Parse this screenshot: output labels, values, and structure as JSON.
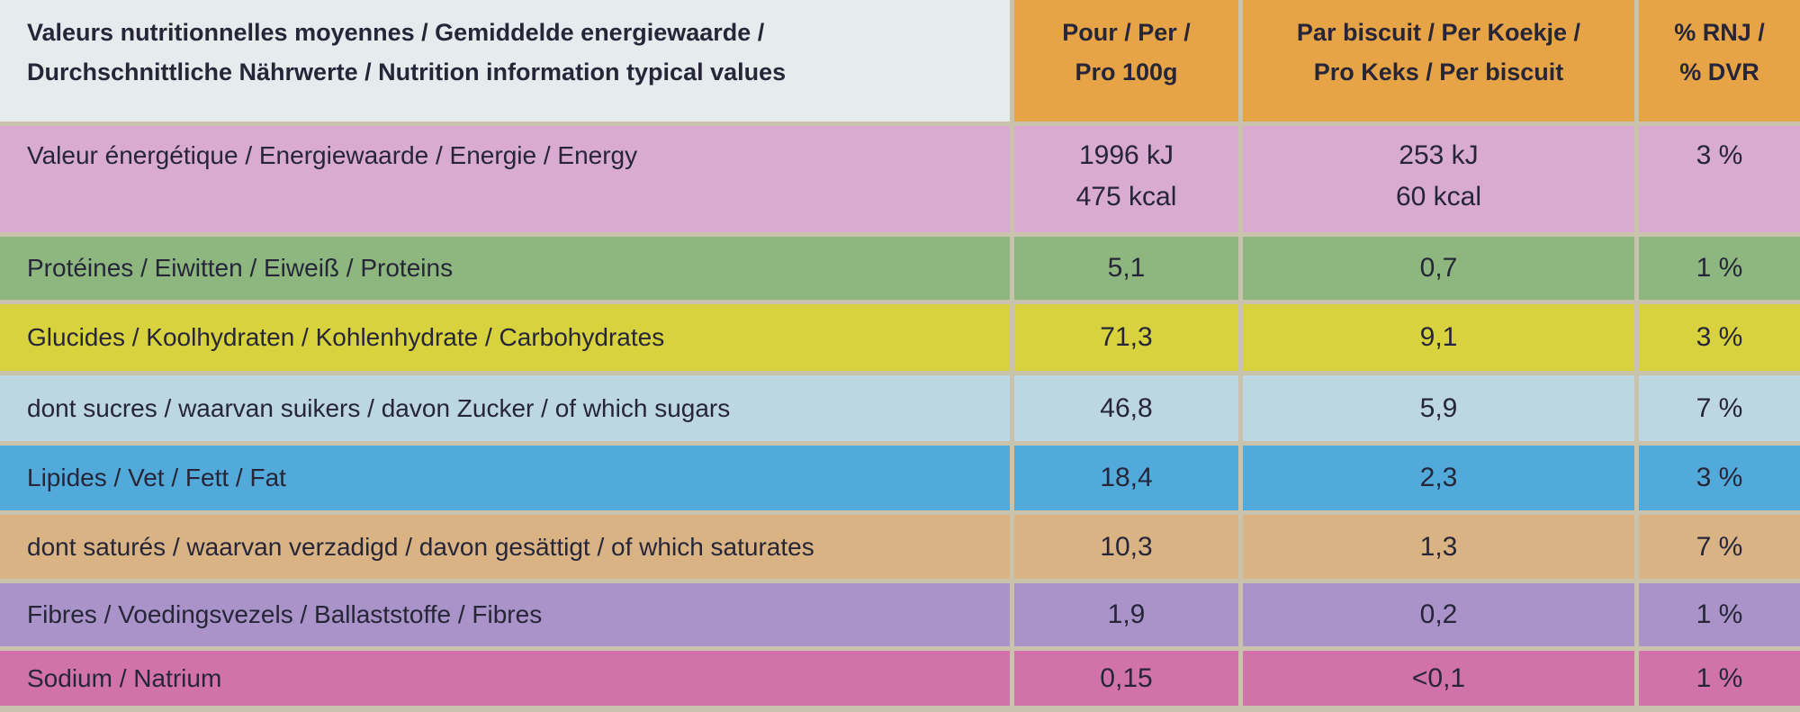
{
  "table": {
    "header": [
      [
        "Valeurs nutritionnelles moyennes / Gemiddelde energiewaarde /",
        "Durchschnittliche Nährwerte / Nutrition information typical values"
      ],
      [
        "Pour / Per /",
        "Pro 100g"
      ],
      [
        "Par biscuit / Per Koekje /",
        "Pro Keks / Per biscuit"
      ],
      [
        "% RNJ /",
        "% DVR"
      ]
    ],
    "rows": [
      [
        "Valeur énergétique / Energiewaarde / Energie / Energy",
        [
          "1996 kJ",
          "475 kcal"
        ],
        [
          "253 kJ",
          "60 kcal"
        ],
        "3 %"
      ],
      [
        "Protéines / Eiwitten / Eiweiß / Proteins",
        "5,1",
        "0,7",
        "1 %"
      ],
      [
        "Glucides / Koolhydraten / Kohlenhydrate / Carbohydrates",
        "71,3",
        "9,1",
        "3 %"
      ],
      [
        "dont sucres / waarvan suikers / davon Zucker / of which sugars",
        "46,8",
        "5,9",
        "7 %"
      ],
      [
        "Lipides / Vet / Fett / Fat",
        "18,4",
        "2,3",
        "3 %"
      ],
      [
        "dont saturés / waarvan verzadigd / davon gesättigt / of which saturates",
        "10,3",
        "1,3",
        "7 %"
      ],
      [
        "Fibres / Voedingsvezels / Ballaststoffe / Fibres",
        "1,9",
        "0,2",
        "1 %"
      ],
      [
        "Sodium / Natrium",
        "0,15",
        "<0,1",
        "1 %"
      ]
    ]
  }
}
